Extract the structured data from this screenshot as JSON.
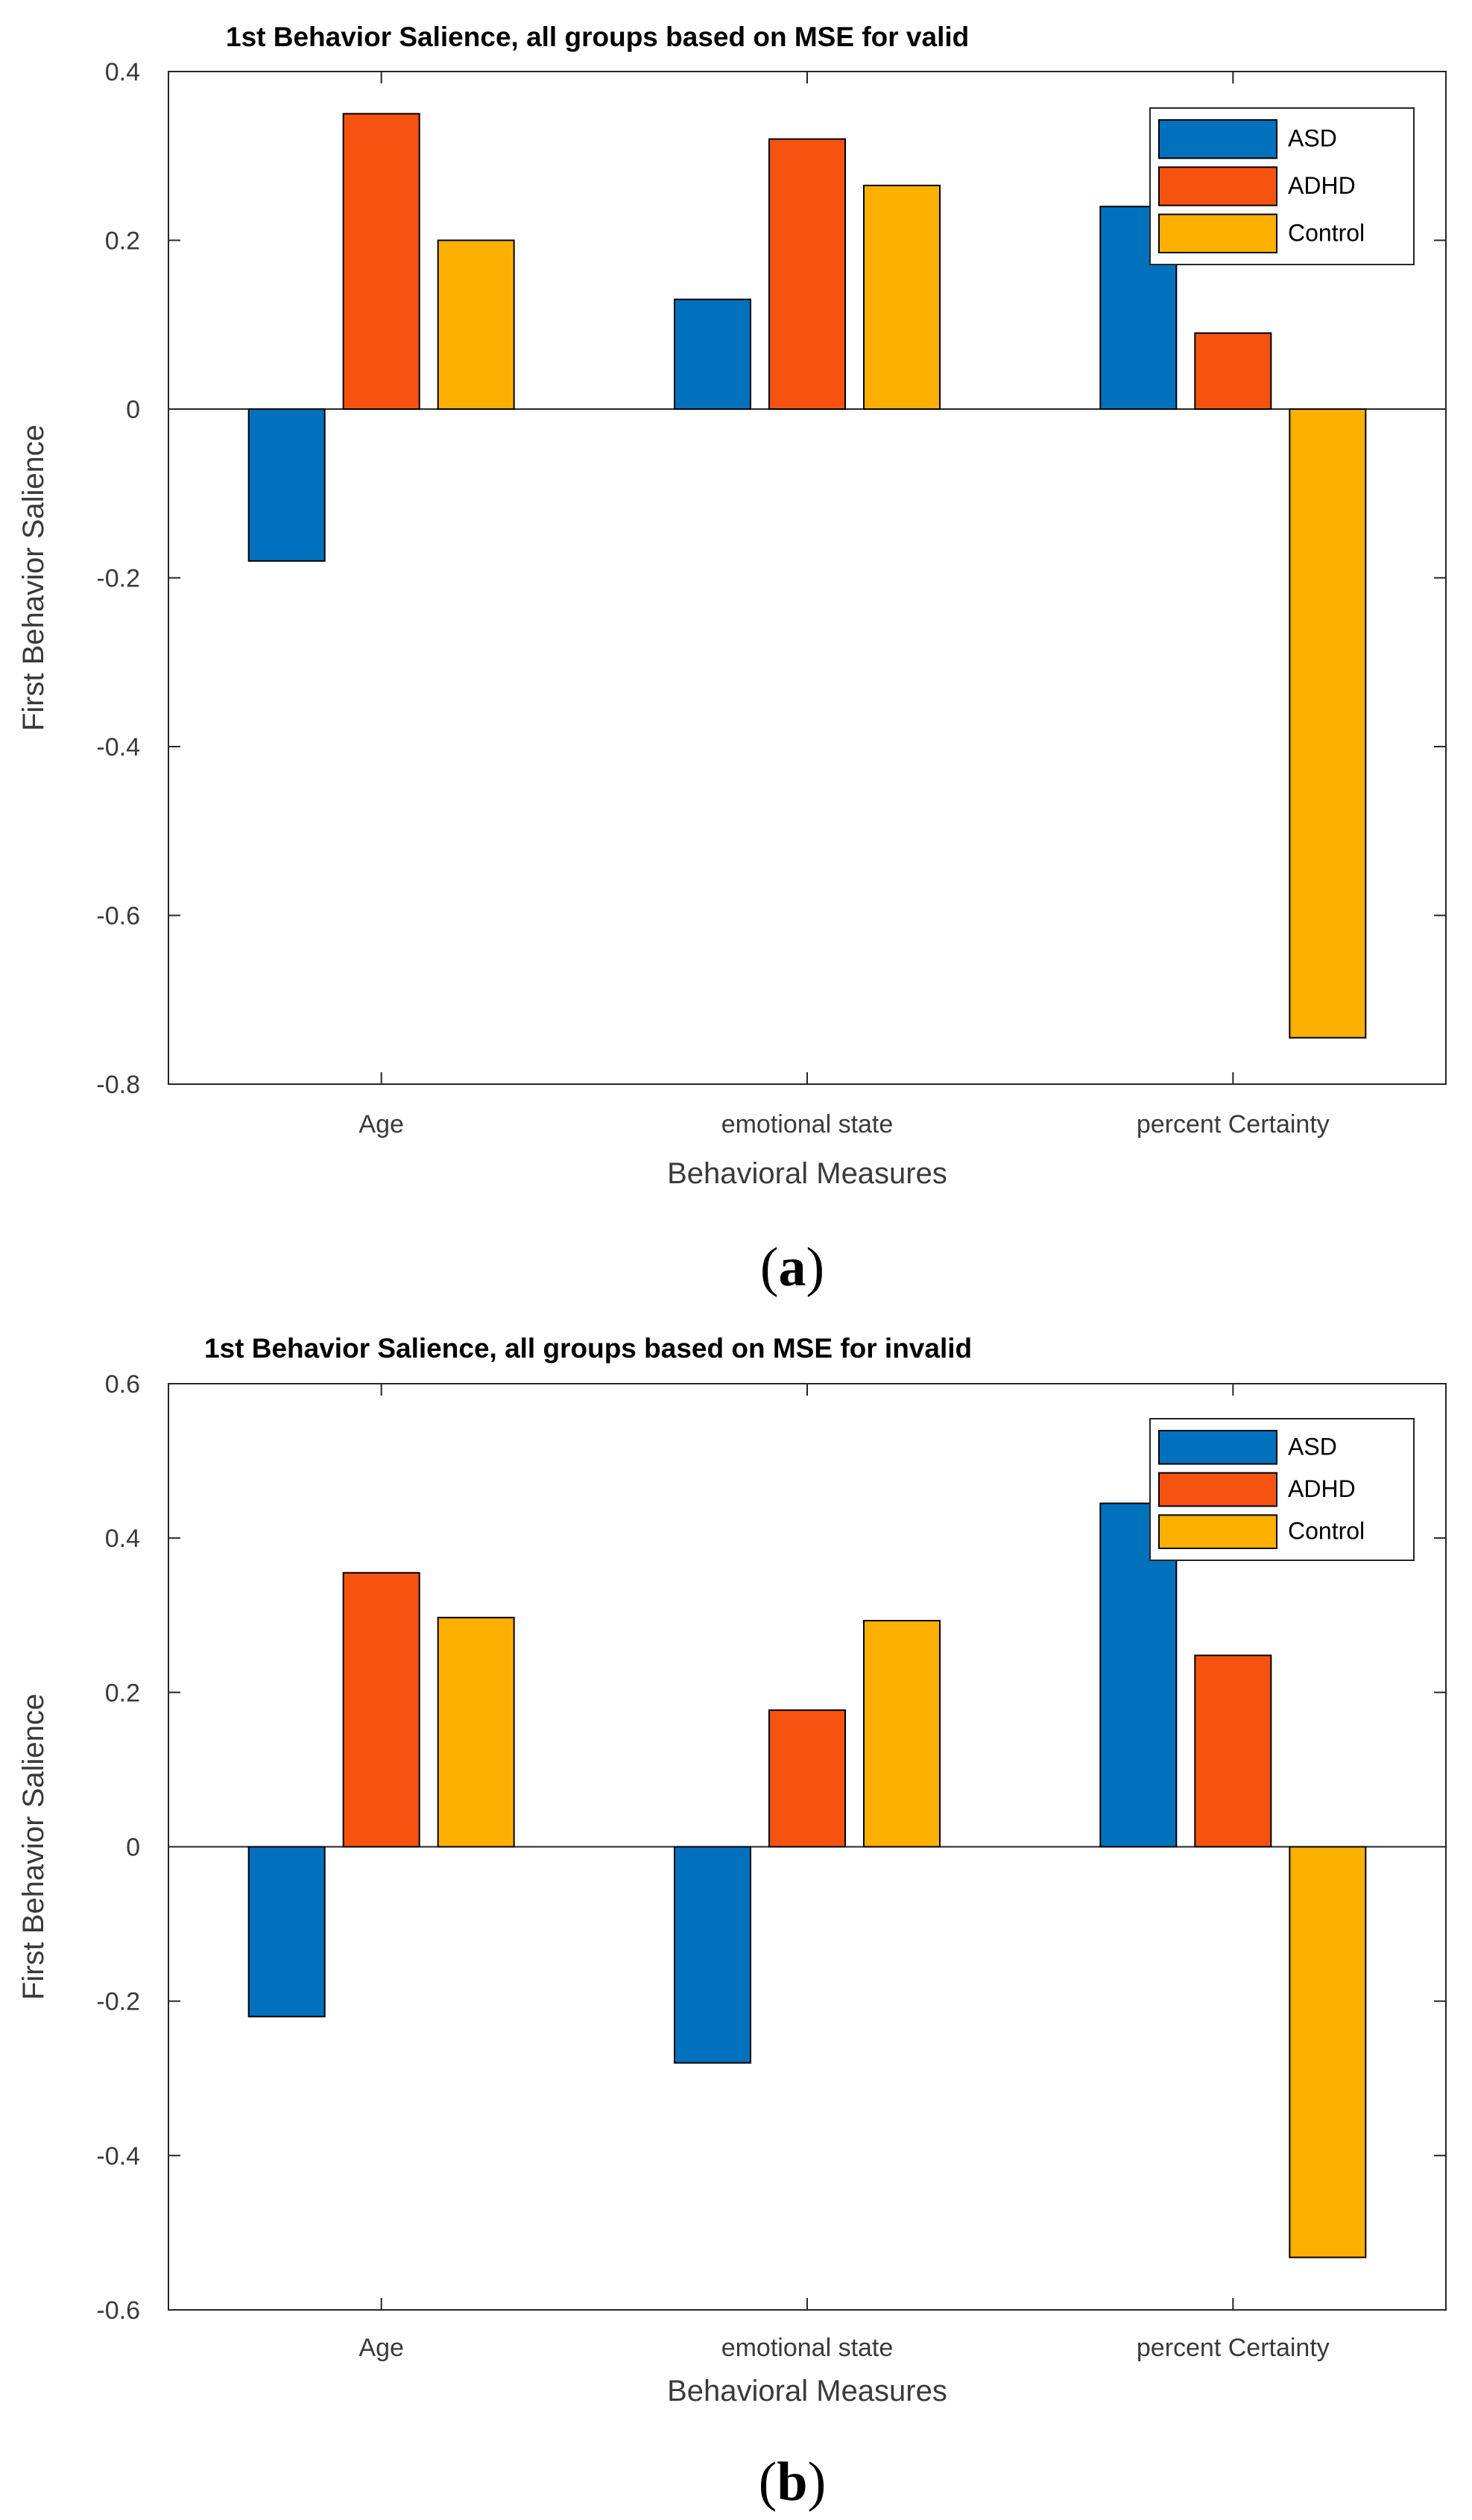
{
  "chart_data": [
    {
      "type": "bar",
      "title": "1st Behavior Salience, all groups based on MSE for valid",
      "xlabel": "Behavioral Measures",
      "ylabel": "First Behavior Salience",
      "categories": [
        "Age",
        "emotional state",
        "percent Certainty"
      ],
      "series": [
        {
          "name": "ASD",
          "color": "#0072BD",
          "values": [
            -0.18,
            0.13,
            0.24
          ]
        },
        {
          "name": "ADHD",
          "color": "#F65310",
          "values": [
            0.35,
            0.32,
            0.09
          ]
        },
        {
          "name": "Control",
          "color": "#FDB000",
          "values": [
            0.2,
            0.265,
            -0.745
          ]
        }
      ],
      "ylim": [
        -0.8,
        0.4
      ],
      "yticks": [
        -0.8,
        -0.6,
        -0.4,
        -0.2,
        0,
        0.2,
        0.4
      ],
      "ytick_labels": [
        "-0.8",
        "-0.6",
        "-0.4",
        "-0.2",
        "0",
        "0.2",
        "0.4"
      ],
      "grid": false,
      "legend_position": "top-right",
      "caption": "(a)",
      "caption_open": "(",
      "caption_letter": "a",
      "caption_close": ")"
    },
    {
      "type": "bar",
      "title": "1st Behavior Salience, all groups based on MSE for invalid",
      "xlabel": "Behavioral Measures",
      "ylabel": "First Behavior Salience",
      "categories": [
        "Age",
        "emotional state",
        "percent Certainty"
      ],
      "series": [
        {
          "name": "ASD",
          "color": "#0072BD",
          "values": [
            -0.22,
            -0.28,
            0.445
          ]
        },
        {
          "name": "ADHD",
          "color": "#F65310",
          "values": [
            0.355,
            0.177,
            0.248
          ]
        },
        {
          "name": "Control",
          "color": "#FDB000",
          "values": [
            0.297,
            0.293,
            -0.532
          ]
        }
      ],
      "ylim": [
        -0.6,
        0.6
      ],
      "yticks": [
        -0.6,
        -0.4,
        -0.2,
        0,
        0.2,
        0.4,
        0.6
      ],
      "ytick_labels": [
        "-0.6",
        "-0.4",
        "-0.2",
        "0",
        "0.2",
        "0.4",
        "0.6"
      ],
      "grid": false,
      "legend_position": "top-right",
      "caption": "(b)",
      "caption_open": "(",
      "caption_letter": "b",
      "caption_close": ")"
    }
  ]
}
